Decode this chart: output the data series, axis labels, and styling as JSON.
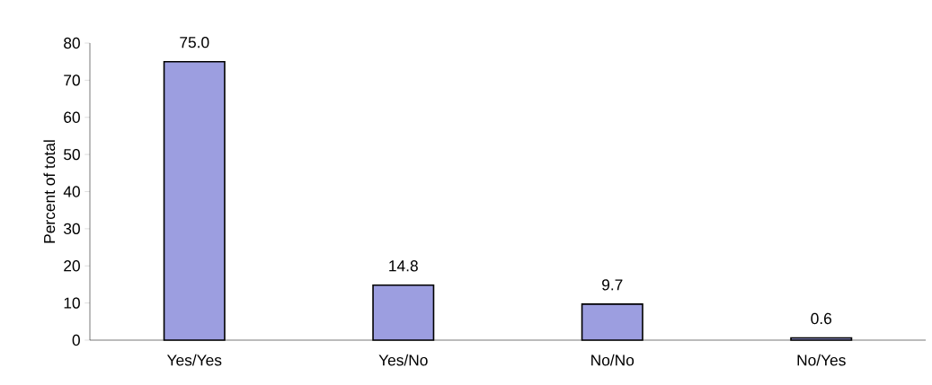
{
  "chart_data": {
    "type": "bar",
    "ylabel": "Percent of total",
    "categories": [
      "Yes/Yes",
      "Yes/No",
      "No/No",
      "No/Yes"
    ],
    "values": [
      75.0,
      14.8,
      9.7,
      0.6
    ],
    "value_labels": [
      "75.0",
      "14.8",
      "9.7",
      "0.6"
    ],
    "color": "#9c9ee0",
    "ylim": [
      0,
      80
    ],
    "yticks": [
      0,
      10,
      20,
      30,
      40,
      50,
      60,
      70,
      80
    ],
    "grid": false
  }
}
